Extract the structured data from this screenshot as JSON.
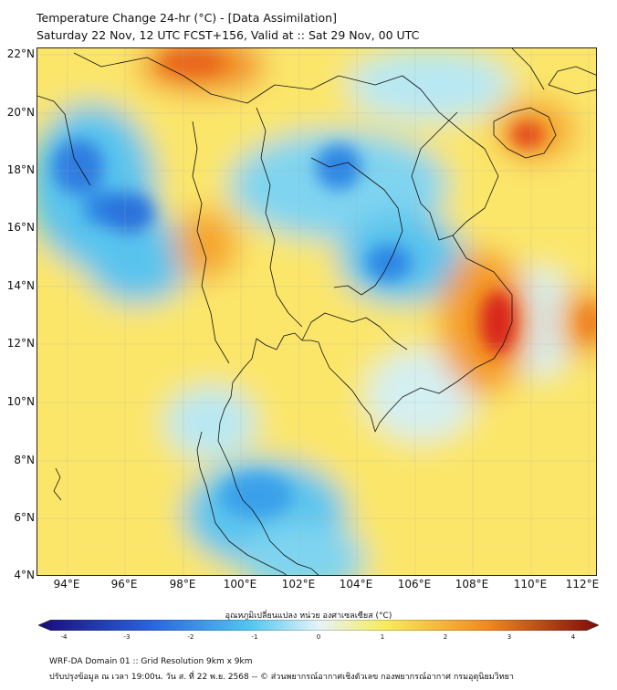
{
  "header": {
    "title_line1": "Temperature Change 24-hr (°C) - [Data Assimilation]",
    "title_line2": "Saturday 22 Nov, 12 UTC FCST+156, Valid at :: Sat 29 Nov, 00 UTC"
  },
  "map": {
    "lat_labels": [
      "22°N",
      "20°N",
      "18°N",
      "16°N",
      "14°N",
      "12°N",
      "10°N",
      "8°N",
      "6°N",
      "4°N"
    ],
    "lon_labels": [
      "94°E",
      "96°E",
      "98°E",
      "100°E",
      "102°E",
      "104°E",
      "106°E",
      "108°E",
      "110°E",
      "112°E"
    ],
    "region": "Mainland Southeast Asia"
  },
  "colorbar": {
    "title": "อุณหภูมิเปลี่ยนแปลง หน่วย องศาเซลเซียส (°C)",
    "ticks": [
      "-4",
      "-3",
      "-2",
      "-1",
      "0",
      "1",
      "2",
      "3",
      "4"
    ],
    "colors": {
      "cold_extreme": "#1a0b78",
      "cold": "#2a62e0",
      "cool": "#52c8f0",
      "neutral": "#e6f3f8",
      "warm": "#f7ec5a",
      "hot": "#f28a1e",
      "hot_extreme": "#7e0a0a"
    }
  },
  "footer": {
    "line1": "WRF-DA Domain 01 :: Grid Resolution 9km x 9km",
    "line2": "ปรับปรุงข้อมูล ณ เวลา 19:00น. วัน ส. ที่ 22 พ.ย. 2568 -- © ส่วนพยากรณ์อากาศเชิงตัวเลข กองพยากรณ์อากาศ กรมอุตุนิยมวิทยา"
  }
}
